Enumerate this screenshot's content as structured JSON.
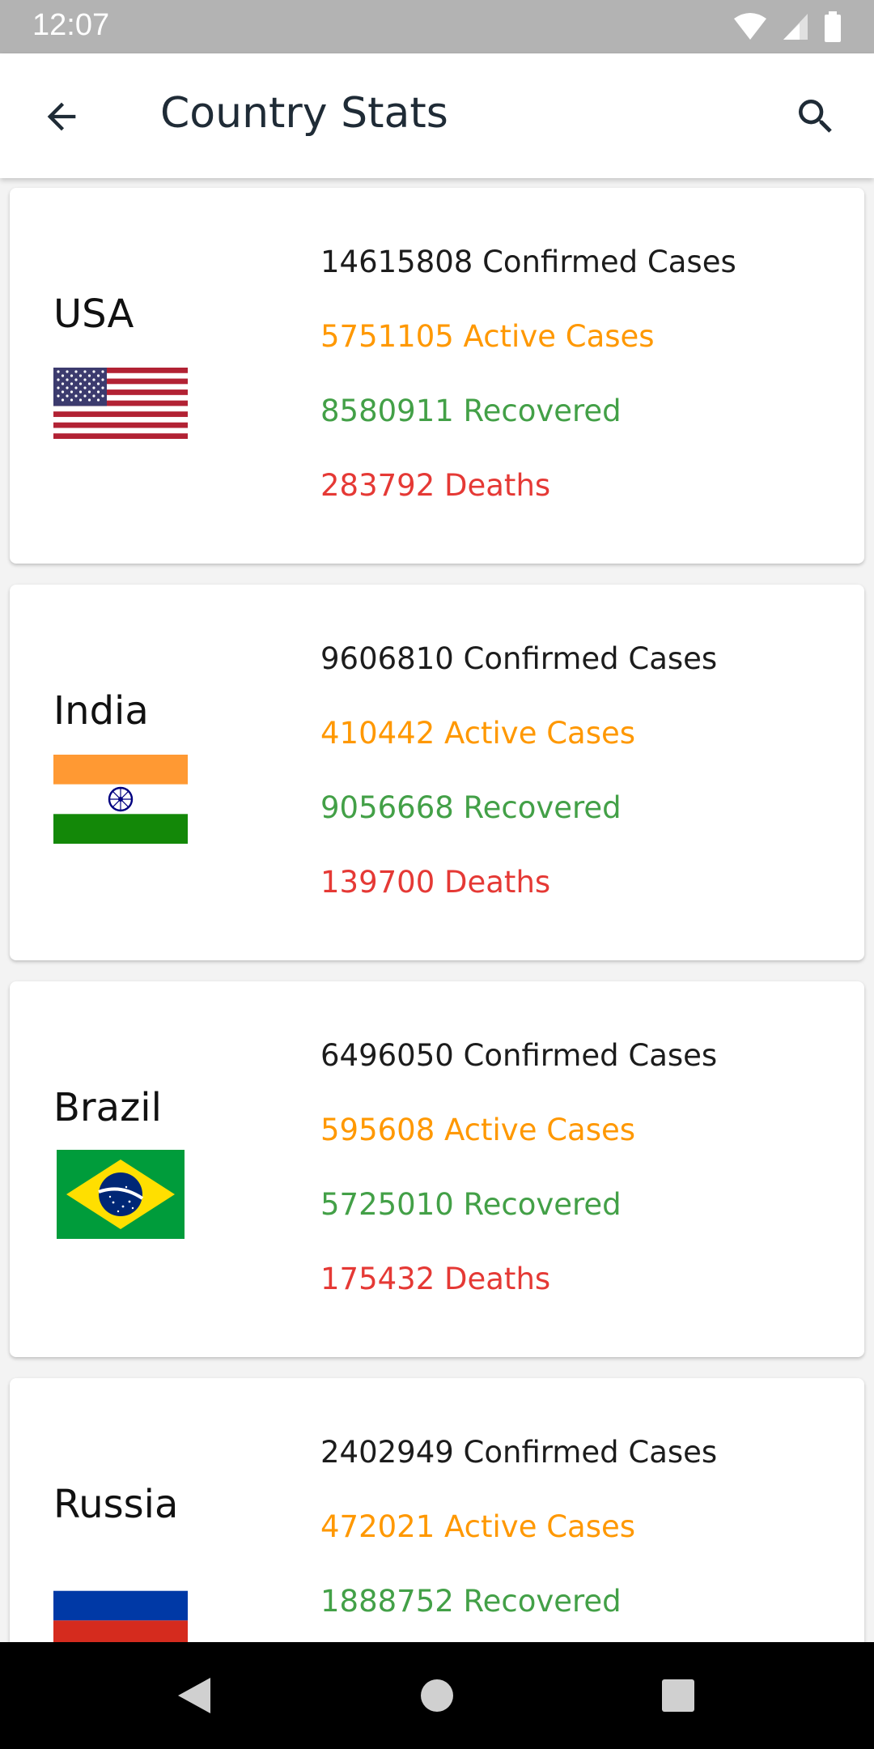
{
  "status_bar": {
    "time": "12:07"
  },
  "app_bar": {
    "title": "Country Stats"
  },
  "colors": {
    "confirmed": "#1c1c1c",
    "active": "#ff9800",
    "recovered": "#43a047",
    "deaths": "#e53935"
  },
  "countries": [
    {
      "name": "USA",
      "flag": "usa-flag",
      "confirmed": "14615808  Confirmed Cases",
      "active": "5751105  Active Cases",
      "recovered": "8580911 Recovered",
      "deaths": "283792 Deaths"
    },
    {
      "name": "India",
      "flag": "india-flag",
      "confirmed": "9606810  Confirmed Cases",
      "active": "410442  Active Cases",
      "recovered": "9056668 Recovered",
      "deaths": "139700 Deaths"
    },
    {
      "name": "Brazil",
      "flag": "brazil-flag",
      "confirmed": "6496050  Confirmed Cases",
      "active": "595608  Active Cases",
      "recovered": "5725010 Recovered",
      "deaths": "175432 Deaths"
    },
    {
      "name": "Russia",
      "flag": "russia-flag",
      "confirmed": "2402949  Confirmed Cases",
      "active": "472021  Active Cases",
      "recovered": "1888752 Recovered"
    }
  ]
}
